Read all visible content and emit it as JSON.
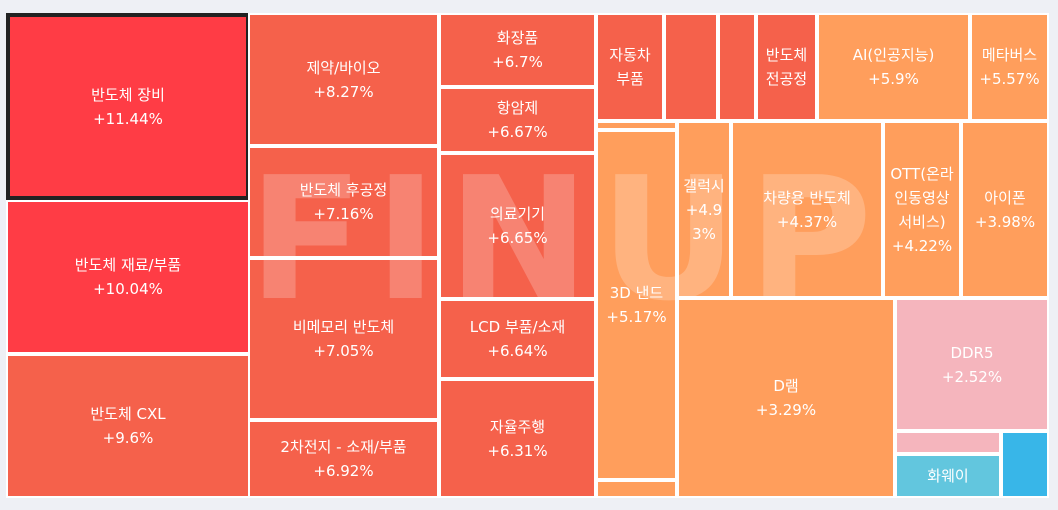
{
  "watermark": "FINUP",
  "colors": {
    "red": "#ff3c45",
    "red_orange": "#f5614b",
    "orange": "#ff9e5c",
    "pink": "#f5b5bd",
    "cyan": "#62c6de",
    "blue": "#38b6e8"
  },
  "chart_data": {
    "type": "treemap",
    "items": [
      {
        "name": "반도체 장비",
        "value": 11.44,
        "label": "+11.44%",
        "color": "#ff3c45",
        "selected": true
      },
      {
        "name": "반도체 재료/부품",
        "value": 10.04,
        "label": "+10.04%",
        "color": "#ff3c45"
      },
      {
        "name": "반도체 CXL",
        "value": 9.6,
        "label": "+9.6%",
        "color": "#f5614b"
      },
      {
        "name": "제약/바이오",
        "value": 8.27,
        "label": "+8.27%",
        "color": "#f5614b"
      },
      {
        "name": "반도체 후공정",
        "value": 7.16,
        "label": "+7.16%",
        "color": "#f5614b"
      },
      {
        "name": "비메모리 반도체",
        "value": 7.05,
        "label": "+7.05%",
        "color": "#f5614b"
      },
      {
        "name": "2차전지 - 소재/부품",
        "value": 6.92,
        "label": "+6.92%",
        "color": "#f5614b"
      },
      {
        "name": "화장품",
        "value": 6.7,
        "label": "+6.7%",
        "color": "#f5614b"
      },
      {
        "name": "항암제",
        "value": 6.67,
        "label": "+6.67%",
        "color": "#f5614b"
      },
      {
        "name": "의료기기",
        "value": 6.65,
        "label": "+6.65%",
        "color": "#f5614b"
      },
      {
        "name": "LCD 부품/소재",
        "value": 6.64,
        "label": "+6.64%",
        "color": "#f5614b"
      },
      {
        "name": "자율주행",
        "value": 6.31,
        "label": "+6.31%",
        "color": "#f5614b"
      },
      {
        "name": "자동차 부품",
        "value": null,
        "label": "",
        "color": "#f5614b"
      },
      {
        "name": "",
        "value": null,
        "label": "",
        "color": "#f5614b"
      },
      {
        "name": "",
        "value": null,
        "label": "",
        "color": "#f5614b"
      },
      {
        "name": "반도체 전공정",
        "value": null,
        "label": "",
        "color": "#f5614b"
      },
      {
        "name": "AI(인공지능)",
        "value": 5.9,
        "label": "+5.9%",
        "color": "#ff9e5c"
      },
      {
        "name": "메타버스",
        "value": 5.57,
        "label": "+5.57%",
        "color": "#ff9e5c"
      },
      {
        "name": "3D 낸드",
        "value": 5.17,
        "label": "+5.17%",
        "color": "#ff9e5c"
      },
      {
        "name": "",
        "value": null,
        "label": "",
        "color": "#ff9e5c"
      },
      {
        "name": "",
        "value": null,
        "label": "",
        "color": "#ff9e5c"
      },
      {
        "name": "갤럭시",
        "value": 4.93,
        "label": "+4.93%",
        "color": "#ff9e5c"
      },
      {
        "name": "차량용 반도체",
        "value": 4.37,
        "label": "+4.37%",
        "color": "#ff9e5c"
      },
      {
        "name": "OTT(온라인동영상서비스)",
        "value": 4.22,
        "label": "+4.22%",
        "color": "#ff9e5c"
      },
      {
        "name": "아이폰",
        "value": 3.98,
        "label": "+3.98%",
        "color": "#ff9e5c"
      },
      {
        "name": "D램",
        "value": 3.29,
        "label": "+3.29%",
        "color": "#ff9e5c"
      },
      {
        "name": "DDR5",
        "value": 2.52,
        "label": "+2.52%",
        "color": "#f5b5bd"
      },
      {
        "name": "",
        "value": null,
        "label": "",
        "color": "#f5b5bd"
      },
      {
        "name": "화웨이",
        "value": null,
        "label": "",
        "color": "#62c6de"
      },
      {
        "name": "",
        "value": null,
        "label": "",
        "color": "#38b6e8"
      }
    ]
  }
}
